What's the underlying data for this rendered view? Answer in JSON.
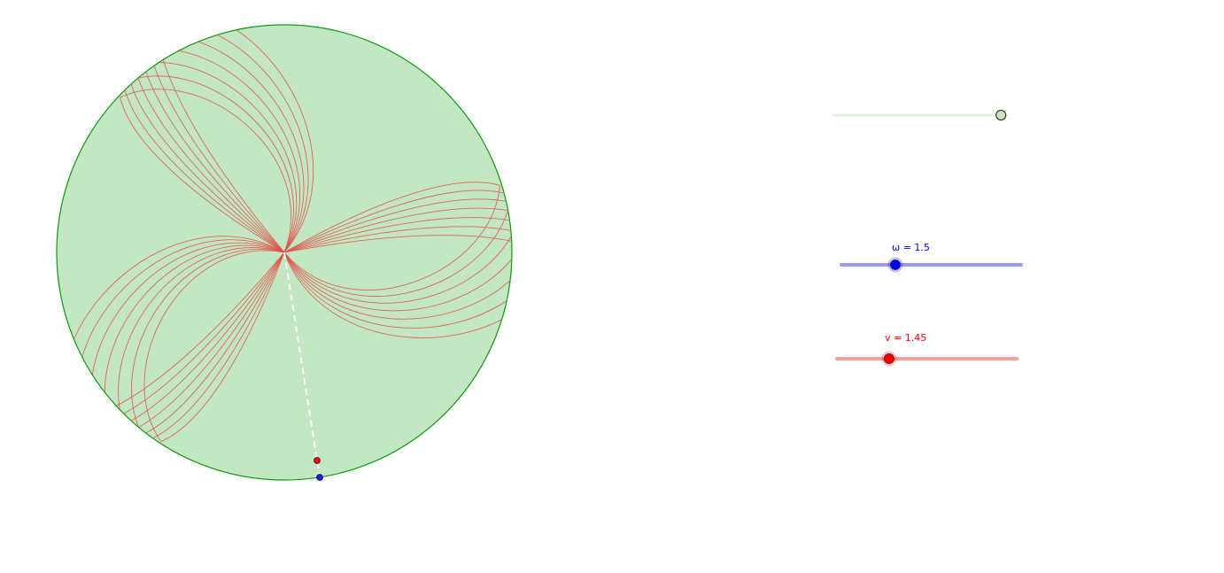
{
  "sliders": {
    "animation": {
      "color": "#c9e6c4",
      "knob_fill": "#c8e8c2",
      "knob_stroke": "#1a1a1a",
      "level_fraction": 0.97
    },
    "omega": {
      "label": "ω = 1.5",
      "value": 1.5,
      "color": "#0000ff",
      "track_color": "#9999ff",
      "level_fraction": 0.3
    },
    "v": {
      "label": "v = 1.45",
      "value": 1.45,
      "color": "#ff0000",
      "track_color": "#f4a0a0",
      "level_fraction": 0.29
    }
  },
  "disk": {
    "fill": "#c2e7c2",
    "stroke": "#0d9a0d"
  },
  "traces": {
    "color": "#e0504a",
    "count": 7,
    "lobes": 3
  },
  "points": {
    "moving_point_color": "#ff0000",
    "rim_point_color": "#1a1aff",
    "radius_line_color": "#ffffff"
  }
}
